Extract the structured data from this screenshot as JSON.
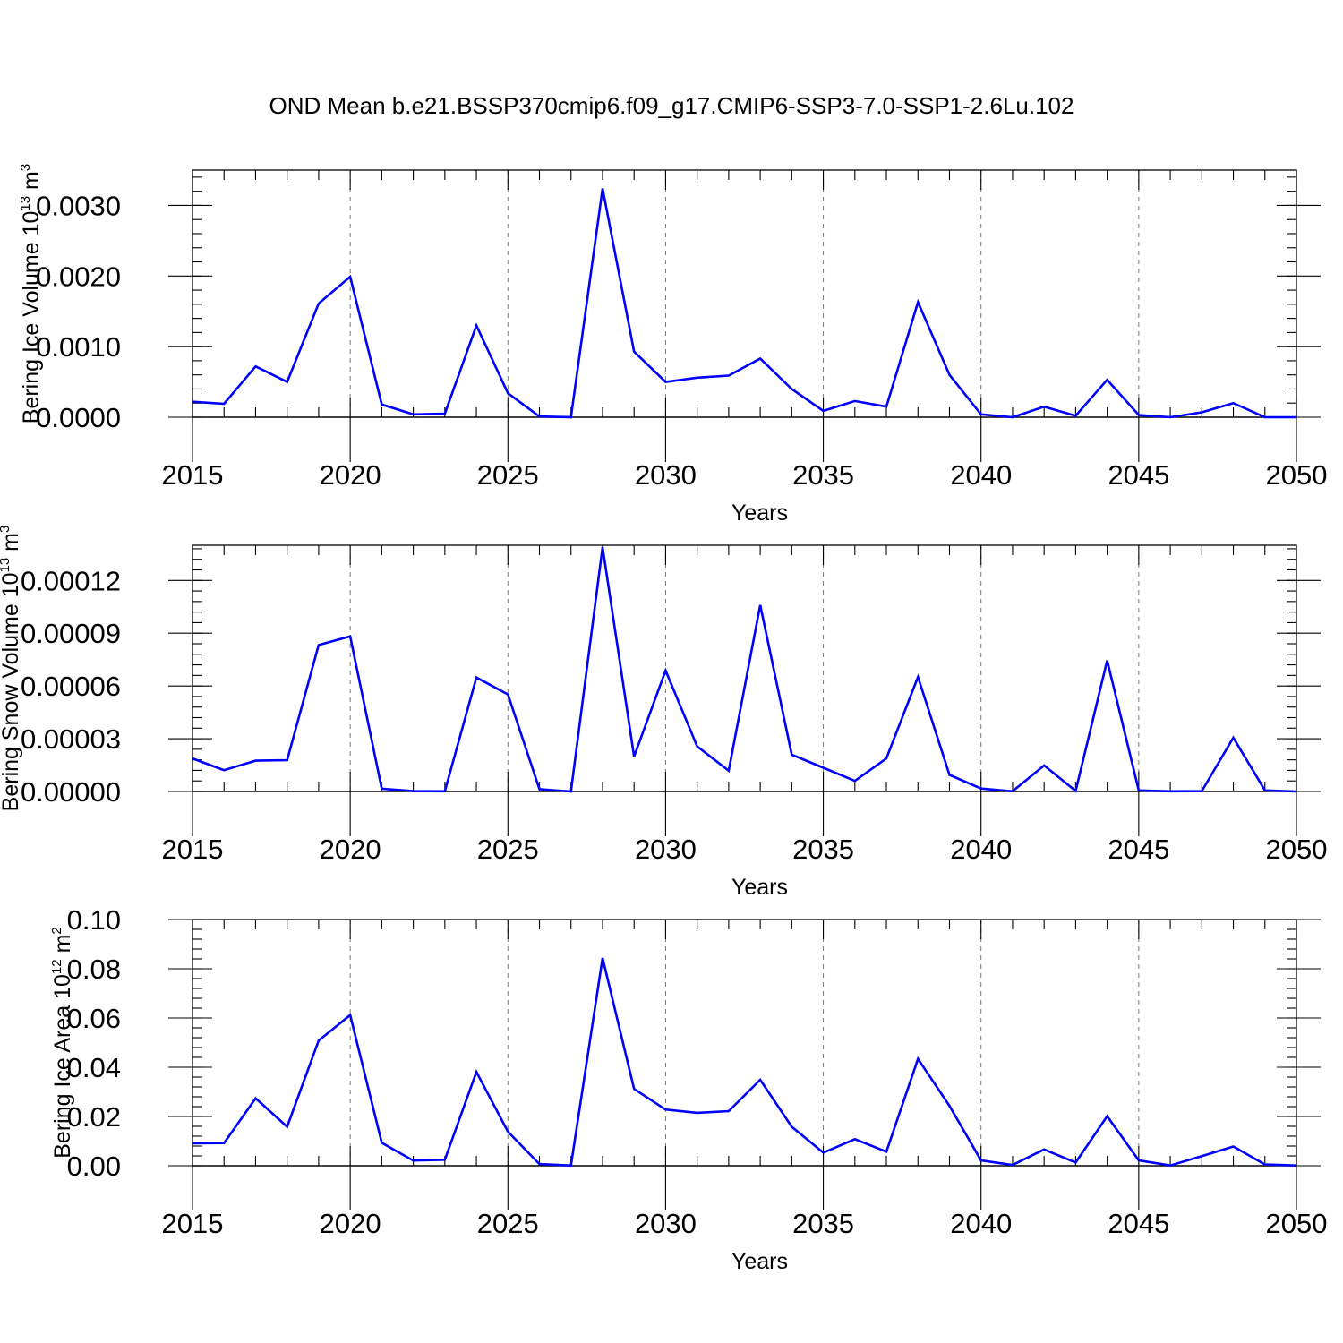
{
  "figure": {
    "title": "OND Mean b.e21.BSSP370cmip6.f09_g17.CMIP6-SSP3-7.0-SSP1-2.6Lu.102"
  },
  "chart_data": [
    {
      "type": "line",
      "xlabel": "Years",
      "ylabel": {
        "text": "Bering Ice Volume 10",
        "sup1": "13",
        "mid": " m",
        "sup2": "3"
      },
      "xlim": [
        2015,
        2050
      ],
      "ylim": [
        0.0,
        0.0035
      ],
      "x_ticks": [
        2015,
        2020,
        2025,
        2030,
        2035,
        2040,
        2045,
        2050
      ],
      "x_tick_labels": [
        "2015",
        "2020",
        "2025",
        "2030",
        "2035",
        "2040",
        "2045",
        "2050"
      ],
      "y_ticks": [
        0.0,
        0.001,
        0.002,
        0.003
      ],
      "y_tick_labels": [
        "0.0000",
        "0.0010",
        "0.0020",
        "0.0030"
      ],
      "grid": "x dashed",
      "line_color": "#0000ff",
      "x": [
        2015,
        2016,
        2017,
        2018,
        2019,
        2020,
        2021,
        2022,
        2023,
        2024,
        2025,
        2026,
        2027,
        2028,
        2029,
        2030,
        2031,
        2032,
        2033,
        2034,
        2035,
        2036,
        2037,
        2038,
        2039,
        2040,
        2041,
        2042,
        2043,
        2044,
        2045,
        2046,
        2047,
        2048,
        2049,
        2050
      ],
      "series": [
        {
          "values": [
            0.00022,
            0.00019,
            0.00072,
            0.0005,
            0.00161,
            0.00199,
            0.00018,
            4e-05,
            5e-05,
            0.0013,
            0.00034,
            1e-05,
            0.0,
            0.00324,
            0.00093,
            0.0005,
            0.00056,
            0.00059,
            0.00083,
            0.0004,
            9e-05,
            0.00023,
            0.00015,
            0.00163,
            0.0006,
            4e-05,
            0.0,
            0.00015,
            2e-05,
            0.00053,
            3e-05,
            0.0,
            7e-05,
            0.0002,
            0.0,
            0.0
          ]
        }
      ]
    },
    {
      "type": "line",
      "xlabel": "Years",
      "ylabel": {
        "text": "Bering Snow Volume 10",
        "sup1": "13",
        "mid": " m",
        "sup2": "3"
      },
      "xlim": [
        2015,
        2050
      ],
      "ylim": [
        0.0,
        0.00014
      ],
      "x_ticks": [
        2015,
        2020,
        2025,
        2030,
        2035,
        2040,
        2045,
        2050
      ],
      "x_tick_labels": [
        "2015",
        "2020",
        "2025",
        "2030",
        "2035",
        "2040",
        "2045",
        "2050"
      ],
      "y_ticks": [
        0.0,
        3e-05,
        6e-05,
        9e-05,
        0.00012
      ],
      "y_tick_labels": [
        "0.00000",
        "0.00003",
        "0.00006",
        "0.00009",
        "0.00012"
      ],
      "grid": "x dashed",
      "line_color": "#0000ff",
      "x": [
        2015,
        2016,
        2017,
        2018,
        2019,
        2020,
        2021,
        2022,
        2023,
        2024,
        2025,
        2026,
        2027,
        2028,
        2029,
        2030,
        2031,
        2032,
        2033,
        2034,
        2035,
        2036,
        2037,
        2038,
        2039,
        2040,
        2041,
        2042,
        2043,
        2044,
        2045,
        2046,
        2047,
        2048,
        2049,
        2050
      ],
      "series": [
        {
          "values": [
            1.88e-05,
            1.21e-05,
            1.75e-05,
            1.78e-05,
            8.33e-05,
            8.82e-05,
            1.6e-06,
            2e-07,
            1e-07,
            6.48e-05,
            5.52e-05,
            1.3e-06,
            0.0,
            0.000139,
            1.99e-05,
            6.88e-05,
            2.56e-05,
            1.18e-05,
            0.000106,
            2.09e-05,
            1.35e-05,
            6e-06,
            1.88e-05,
            6.51e-05,
            9.4e-06,
            1.7e-06,
            1e-07,
            1.48e-05,
            3e-07,
            7.45e-05,
            6e-07,
            1e-07,
            2e-07,
            3.06e-05,
            6e-07,
            0.0
          ]
        }
      ]
    },
    {
      "type": "line",
      "xlabel": "Years",
      "ylabel": {
        "text": "Bering Ice Area 10",
        "sup1": "12",
        "mid": " m",
        "sup2": "2"
      },
      "xlim": [
        2015,
        2050
      ],
      "ylim": [
        0.0,
        0.1
      ],
      "x_ticks": [
        2015,
        2020,
        2025,
        2030,
        2035,
        2040,
        2045,
        2050
      ],
      "x_tick_labels": [
        "2015",
        "2020",
        "2025",
        "2030",
        "2035",
        "2040",
        "2045",
        "2050"
      ],
      "y_ticks": [
        0.0,
        0.02,
        0.04,
        0.06,
        0.08,
        0.1
      ],
      "y_tick_labels": [
        "0.00",
        "0.02",
        "0.04",
        "0.06",
        "0.08",
        "0.10"
      ],
      "grid": "x dashed",
      "line_color": "#0000ff",
      "x": [
        2015,
        2016,
        2017,
        2018,
        2019,
        2020,
        2021,
        2022,
        2023,
        2024,
        2025,
        2026,
        2027,
        2028,
        2029,
        2030,
        2031,
        2032,
        2033,
        2034,
        2035,
        2036,
        2037,
        2038,
        2039,
        2040,
        2041,
        2042,
        2043,
        2044,
        2045,
        2046,
        2047,
        2048,
        2049,
        2050
      ],
      "series": [
        {
          "values": [
            0.0091,
            0.0092,
            0.0274,
            0.0158,
            0.0508,
            0.0612,
            0.0093,
            0.0021,
            0.0024,
            0.0381,
            0.0138,
            0.0007,
            0.0001,
            0.0844,
            0.0312,
            0.0228,
            0.0215,
            0.0222,
            0.0349,
            0.0158,
            0.0053,
            0.0108,
            0.0057,
            0.0434,
            0.0243,
            0.0022,
            0.0003,
            0.0066,
            0.0013,
            0.0201,
            0.0022,
            0.0001,
            0.0039,
            0.0078,
            0.0005,
            0.0001
          ]
        }
      ]
    }
  ]
}
